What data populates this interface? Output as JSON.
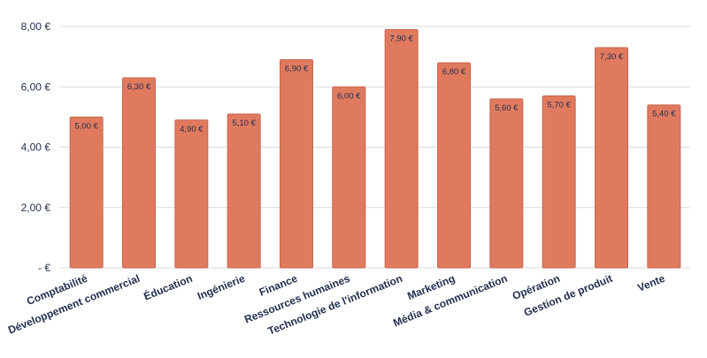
{
  "chart_data": {
    "type": "bar",
    "categories": [
      "Comptabilité",
      "Développement commercial",
      "Éducation",
      "Ingénierie",
      "Finance",
      "Ressources humaines",
      "Technologie de l'information",
      "Marketing",
      "Média & communication",
      "Opération",
      "Gestion de produit",
      "Vente"
    ],
    "values": [
      5.0,
      6.3,
      4.9,
      5.1,
      6.9,
      6.0,
      7.9,
      6.8,
      5.6,
      5.7,
      7.3,
      5.4
    ],
    "data_labels": [
      "5,00 €",
      "6,30 €",
      "4,90 €",
      "5,10 €",
      "6,90 €",
      "6,00 €",
      "7,90 €",
      "6,80 €",
      "5,60 €",
      "5,70 €",
      "7,30 €",
      "5,40 €"
    ],
    "yticks": [
      0,
      2,
      4,
      6,
      8
    ],
    "ytick_labels": [
      "-   €",
      "2,00 €",
      "4,00 €",
      "6,00 €",
      "8,00 €"
    ],
    "ylim": [
      0,
      8
    ],
    "grid": true,
    "bar_color": "#e07a5f",
    "bar_stroke": "#c9664d",
    "grid_color": "#d9d9d9",
    "text_color": "#1f2d4d"
  }
}
